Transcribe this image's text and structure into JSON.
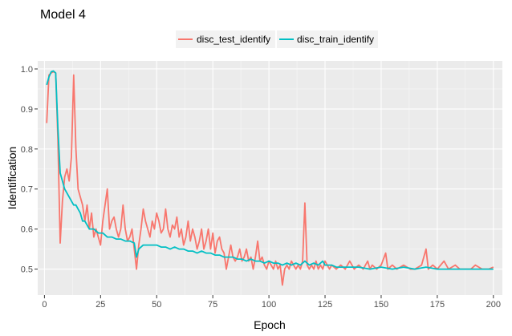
{
  "chart_data": {
    "type": "line",
    "title": "Model 4",
    "xlabel": "Epoch",
    "ylabel": "Identification",
    "xlim": [
      -3,
      204
    ],
    "ylim": [
      0.435,
      1.02
    ],
    "x_ticks": [
      0,
      25,
      50,
      75,
      100,
      125,
      150,
      175,
      200
    ],
    "x_tick_labels": [
      "0",
      "25",
      "50",
      "75",
      "100",
      "125",
      "150",
      "175",
      "200"
    ],
    "y_ticks": [
      0.5,
      0.6,
      0.7,
      0.8,
      0.9,
      1.0
    ],
    "y_tick_labels": [
      "0.5",
      "0.6",
      "0.7",
      "0.8",
      "0.9",
      "1.0"
    ],
    "grid": true,
    "legend_position": "top",
    "series": [
      {
        "name": "disc_test_identify",
        "color": "#F8766D",
        "points": [
          [
            1,
            0.865
          ],
          [
            2,
            0.985
          ],
          [
            3,
            0.99
          ],
          [
            4,
            0.993
          ],
          [
            5,
            0.99
          ],
          [
            6,
            0.82
          ],
          [
            7,
            0.565
          ],
          [
            8,
            0.67
          ],
          [
            9,
            0.73
          ],
          [
            10,
            0.75
          ],
          [
            11,
            0.72
          ],
          [
            12,
            0.78
          ],
          [
            13,
            0.985
          ],
          [
            14,
            0.8
          ],
          [
            15,
            0.7
          ],
          [
            16,
            0.68
          ],
          [
            17,
            0.66
          ],
          [
            18,
            0.62
          ],
          [
            19,
            0.66
          ],
          [
            20,
            0.6
          ],
          [
            21,
            0.64
          ],
          [
            22,
            0.58
          ],
          [
            23,
            0.6
          ],
          [
            24,
            0.58
          ],
          [
            25,
            0.56
          ],
          [
            26,
            0.62
          ],
          [
            27,
            0.66
          ],
          [
            28,
            0.7
          ],
          [
            29,
            0.6
          ],
          [
            30,
            0.62
          ],
          [
            31,
            0.63
          ],
          [
            32,
            0.6
          ],
          [
            33,
            0.58
          ],
          [
            34,
            0.6
          ],
          [
            35,
            0.66
          ],
          [
            36,
            0.6
          ],
          [
            37,
            0.57
          ],
          [
            38,
            0.58
          ],
          [
            39,
            0.6
          ],
          [
            40,
            0.55
          ],
          [
            41,
            0.5
          ],
          [
            42,
            0.56
          ],
          [
            43,
            0.6
          ],
          [
            44,
            0.65
          ],
          [
            45,
            0.62
          ],
          [
            46,
            0.6
          ],
          [
            47,
            0.58
          ],
          [
            48,
            0.62
          ],
          [
            49,
            0.6
          ],
          [
            50,
            0.64
          ],
          [
            51,
            0.62
          ],
          [
            52,
            0.59
          ],
          [
            53,
            0.6
          ],
          [
            54,
            0.65
          ],
          [
            55,
            0.6
          ],
          [
            56,
            0.58
          ],
          [
            57,
            0.61
          ],
          [
            58,
            0.6
          ],
          [
            59,
            0.63
          ],
          [
            60,
            0.58
          ],
          [
            61,
            0.6
          ],
          [
            62,
            0.56
          ],
          [
            63,
            0.58
          ],
          [
            64,
            0.62
          ],
          [
            65,
            0.57
          ],
          [
            66,
            0.6
          ],
          [
            67,
            0.58
          ],
          [
            68,
            0.55
          ],
          [
            69,
            0.57
          ],
          [
            70,
            0.6
          ],
          [
            71,
            0.55
          ],
          [
            72,
            0.57
          ],
          [
            73,
            0.6
          ],
          [
            74,
            0.55
          ],
          [
            75,
            0.59
          ],
          [
            76,
            0.54
          ],
          [
            77,
            0.57
          ],
          [
            78,
            0.58
          ],
          [
            79,
            0.55
          ],
          [
            80,
            0.54
          ],
          [
            81,
            0.5
          ],
          [
            82,
            0.53
          ],
          [
            83,
            0.56
          ],
          [
            84,
            0.53
          ],
          [
            85,
            0.52
          ],
          [
            86,
            0.53
          ],
          [
            87,
            0.55
          ],
          [
            88,
            0.52
          ],
          [
            89,
            0.53
          ],
          [
            90,
            0.55
          ],
          [
            91,
            0.52
          ],
          [
            92,
            0.53
          ],
          [
            93,
            0.5
          ],
          [
            94,
            0.53
          ],
          [
            95,
            0.57
          ],
          [
            96,
            0.52
          ],
          [
            97,
            0.53
          ],
          [
            98,
            0.51
          ],
          [
            99,
            0.5
          ],
          [
            100,
            0.52
          ],
          [
            101,
            0.51
          ],
          [
            102,
            0.5
          ],
          [
            103,
            0.52
          ],
          [
            104,
            0.5
          ],
          [
            105,
            0.51
          ],
          [
            106,
            0.46
          ],
          [
            107,
            0.5
          ],
          [
            108,
            0.51
          ],
          [
            109,
            0.5
          ],
          [
            110,
            0.52
          ],
          [
            111,
            0.51
          ],
          [
            112,
            0.5
          ],
          [
            113,
            0.51
          ],
          [
            114,
            0.5
          ],
          [
            115,
            0.52
          ],
          [
            116,
            0.665
          ],
          [
            117,
            0.51
          ],
          [
            118,
            0.5
          ],
          [
            119,
            0.51
          ],
          [
            120,
            0.5
          ],
          [
            121,
            0.52
          ],
          [
            122,
            0.5
          ],
          [
            123,
            0.51
          ],
          [
            124,
            0.5
          ],
          [
            125,
            0.52
          ],
          [
            126,
            0.51
          ],
          [
            127,
            0.5
          ],
          [
            128,
            0.51
          ],
          [
            130,
            0.5
          ],
          [
            132,
            0.51
          ],
          [
            134,
            0.5
          ],
          [
            136,
            0.52
          ],
          [
            138,
            0.5
          ],
          [
            140,
            0.51
          ],
          [
            142,
            0.5
          ],
          [
            144,
            0.52
          ],
          [
            145,
            0.5
          ],
          [
            146,
            0.51
          ],
          [
            148,
            0.5
          ],
          [
            150,
            0.51
          ],
          [
            152,
            0.54
          ],
          [
            153,
            0.5
          ],
          [
            155,
            0.51
          ],
          [
            157,
            0.5
          ],
          [
            160,
            0.51
          ],
          [
            163,
            0.5
          ],
          [
            165,
            0.5
          ],
          [
            168,
            0.51
          ],
          [
            170,
            0.55
          ],
          [
            171,
            0.5
          ],
          [
            173,
            0.51
          ],
          [
            175,
            0.5
          ],
          [
            178,
            0.52
          ],
          [
            180,
            0.5
          ],
          [
            183,
            0.51
          ],
          [
            185,
            0.5
          ],
          [
            188,
            0.5
          ],
          [
            190,
            0.5
          ],
          [
            192,
            0.51
          ],
          [
            195,
            0.5
          ],
          [
            198,
            0.5
          ],
          [
            200,
            0.505
          ]
        ]
      },
      {
        "name": "disc_train_identify",
        "color": "#00BFC4",
        "points": [
          [
            1,
            0.96
          ],
          [
            2,
            0.98
          ],
          [
            3,
            0.993
          ],
          [
            4,
            0.995
          ],
          [
            5,
            0.99
          ],
          [
            6,
            0.85
          ],
          [
            7,
            0.74
          ],
          [
            8,
            0.72
          ],
          [
            9,
            0.7
          ],
          [
            10,
            0.69
          ],
          [
            11,
            0.68
          ],
          [
            12,
            0.67
          ],
          [
            13,
            0.66
          ],
          [
            14,
            0.66
          ],
          [
            15,
            0.65
          ],
          [
            16,
            0.64
          ],
          [
            17,
            0.62
          ],
          [
            18,
            0.62
          ],
          [
            19,
            0.61
          ],
          [
            20,
            0.6
          ],
          [
            22,
            0.6
          ],
          [
            24,
            0.59
          ],
          [
            26,
            0.59
          ],
          [
            28,
            0.58
          ],
          [
            30,
            0.58
          ],
          [
            32,
            0.575
          ],
          [
            34,
            0.575
          ],
          [
            36,
            0.57
          ],
          [
            38,
            0.57
          ],
          [
            40,
            0.565
          ],
          [
            41,
            0.53
          ],
          [
            42,
            0.55
          ],
          [
            44,
            0.56
          ],
          [
            46,
            0.56
          ],
          [
            48,
            0.56
          ],
          [
            50,
            0.56
          ],
          [
            52,
            0.555
          ],
          [
            54,
            0.555
          ],
          [
            56,
            0.55
          ],
          [
            58,
            0.555
          ],
          [
            60,
            0.55
          ],
          [
            62,
            0.55
          ],
          [
            64,
            0.545
          ],
          [
            66,
            0.545
          ],
          [
            68,
            0.54
          ],
          [
            70,
            0.545
          ],
          [
            72,
            0.54
          ],
          [
            74,
            0.54
          ],
          [
            76,
            0.535
          ],
          [
            78,
            0.535
          ],
          [
            80,
            0.53
          ],
          [
            82,
            0.53
          ],
          [
            84,
            0.53
          ],
          [
            86,
            0.525
          ],
          [
            88,
            0.525
          ],
          [
            90,
            0.52
          ],
          [
            92,
            0.525
          ],
          [
            94,
            0.52
          ],
          [
            96,
            0.52
          ],
          [
            98,
            0.515
          ],
          [
            100,
            0.52
          ],
          [
            102,
            0.515
          ],
          [
            104,
            0.515
          ],
          [
            106,
            0.51
          ],
          [
            108,
            0.515
          ],
          [
            110,
            0.51
          ],
          [
            112,
            0.515
          ],
          [
            114,
            0.51
          ],
          [
            116,
            0.52
          ],
          [
            118,
            0.51
          ],
          [
            120,
            0.515
          ],
          [
            122,
            0.51
          ],
          [
            124,
            0.52
          ],
          [
            125,
            0.51
          ],
          [
            128,
            0.51
          ],
          [
            130,
            0.505
          ],
          [
            135,
            0.505
          ],
          [
            140,
            0.505
          ],
          [
            145,
            0.5
          ],
          [
            150,
            0.505
          ],
          [
            155,
            0.5
          ],
          [
            160,
            0.505
          ],
          [
            165,
            0.5
          ],
          [
            170,
            0.505
          ],
          [
            175,
            0.5
          ],
          [
            180,
            0.5
          ],
          [
            185,
            0.5
          ],
          [
            190,
            0.5
          ],
          [
            195,
            0.5
          ],
          [
            200,
            0.5
          ]
        ]
      }
    ]
  }
}
